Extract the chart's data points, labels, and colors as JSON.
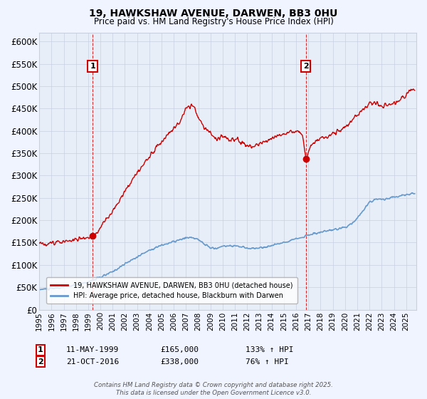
{
  "title": "19, HAWKSHAW AVENUE, DARWEN, BB3 0HU",
  "subtitle": "Price paid vs. HM Land Registry's House Price Index (HPI)",
  "ylabel_ticks": [
    "£0",
    "£50K",
    "£100K",
    "£150K",
    "£200K",
    "£250K",
    "£300K",
    "£350K",
    "£400K",
    "£450K",
    "£500K",
    "£550K",
    "£600K"
  ],
  "ytick_vals": [
    0,
    50000,
    100000,
    150000,
    200000,
    250000,
    300000,
    350000,
    400000,
    450000,
    500000,
    550000,
    600000
  ],
  "ylim": [
    0,
    620000
  ],
  "xlim_start": 1995.0,
  "xlim_end": 2025.83,
  "xticks": [
    1995,
    1996,
    1997,
    1998,
    1999,
    2000,
    2001,
    2002,
    2003,
    2004,
    2005,
    2006,
    2007,
    2008,
    2009,
    2010,
    2011,
    2012,
    2013,
    2014,
    2015,
    2016,
    2017,
    2018,
    2019,
    2020,
    2021,
    2022,
    2023,
    2024,
    2025
  ],
  "legend_line1": "19, HAWKSHAW AVENUE, DARWEN, BB3 0HU (detached house)",
  "legend_line2": "HPI: Average price, detached house, Blackburn with Darwen",
  "sale1_x": 1999.36,
  "sale1_y": 165000,
  "sale1_label": "1",
  "sale2_x": 2016.8,
  "sale2_y": 338000,
  "sale2_label": "2",
  "footer": "Contains HM Land Registry data © Crown copyright and database right 2025.\nThis data is licensed under the Open Government Licence v3.0.",
  "red_color": "#cc0000",
  "blue_color": "#6699cc",
  "background_color": "#f0f4ff",
  "plot_bg_color": "#e8eef8",
  "grid_color": "#c8d0e0"
}
